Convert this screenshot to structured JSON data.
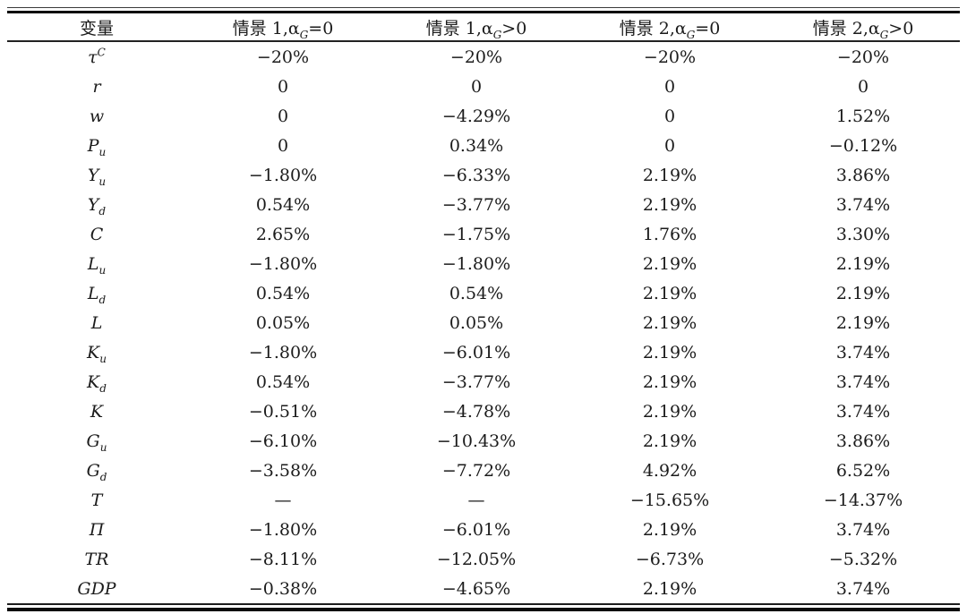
{
  "table": {
    "header": {
      "var_label": "变量",
      "scenarios": [
        {
          "pre": "情景 1,α",
          "sub": "G",
          "post": "=0"
        },
        {
          "pre": "情景 1,α",
          "sub": "G",
          "post": ">0"
        },
        {
          "pre": "情景 2,α",
          "sub": "G",
          "post": "=0"
        },
        {
          "pre": "情景 2,α",
          "sub": "G",
          "post": ">0"
        }
      ]
    },
    "rows": [
      {
        "var": {
          "base": "τ",
          "sup": "C"
        },
        "values": [
          "−20%",
          "−20%",
          "−20%",
          "−20%"
        ]
      },
      {
        "var": {
          "base": "r"
        },
        "values": [
          "0",
          "0",
          "0",
          "0"
        ]
      },
      {
        "var": {
          "base": "w"
        },
        "values": [
          "0",
          "−4.29%",
          "0",
          "1.52%"
        ]
      },
      {
        "var": {
          "base": "P",
          "sub": "u"
        },
        "values": [
          "0",
          "0.34%",
          "0",
          "−0.12%"
        ]
      },
      {
        "var": {
          "base": "Y",
          "sub": "u"
        },
        "values": [
          "−1.80%",
          "−6.33%",
          "2.19%",
          "3.86%"
        ]
      },
      {
        "var": {
          "base": "Y",
          "sub": "d"
        },
        "values": [
          "0.54%",
          "−3.77%",
          "2.19%",
          "3.74%"
        ]
      },
      {
        "var": {
          "base": "C"
        },
        "values": [
          "2.65%",
          "−1.75%",
          "1.76%",
          "3.30%"
        ]
      },
      {
        "var": {
          "base": "L",
          "sub": "u"
        },
        "values": [
          "−1.80%",
          "−1.80%",
          "2.19%",
          "2.19%"
        ]
      },
      {
        "var": {
          "base": "L",
          "sub": "d"
        },
        "values": [
          "0.54%",
          "0.54%",
          "2.19%",
          "2.19%"
        ]
      },
      {
        "var": {
          "base": "L"
        },
        "values": [
          "0.05%",
          "0.05%",
          "2.19%",
          "2.19%"
        ]
      },
      {
        "var": {
          "base": "K",
          "sub": "u"
        },
        "values": [
          "−1.80%",
          "−6.01%",
          "2.19%",
          "3.74%"
        ]
      },
      {
        "var": {
          "base": "K",
          "sub": "d"
        },
        "values": [
          "0.54%",
          "−3.77%",
          "2.19%",
          "3.74%"
        ]
      },
      {
        "var": {
          "base": "K"
        },
        "values": [
          "−0.51%",
          "−4.78%",
          "2.19%",
          "3.74%"
        ]
      },
      {
        "var": {
          "base": "G",
          "sub": "u"
        },
        "values": [
          "−6.10%",
          "−10.43%",
          "2.19%",
          "3.86%"
        ]
      },
      {
        "var": {
          "base": "G",
          "sub": "d"
        },
        "values": [
          "−3.58%",
          "−7.72%",
          "4.92%",
          "6.52%"
        ]
      },
      {
        "var": {
          "base": "T"
        },
        "values": [
          "—",
          "—",
          "−15.65%",
          "−14.37%"
        ]
      },
      {
        "var": {
          "base": "Π"
        },
        "values": [
          "−1.80%",
          "−6.01%",
          "2.19%",
          "3.74%"
        ]
      },
      {
        "var": {
          "base": "TR"
        },
        "values": [
          "−8.11%",
          "−12.05%",
          "−6.73%",
          "−5.32%"
        ]
      },
      {
        "var": {
          "base": "GDP"
        },
        "values": [
          "−0.38%",
          "−4.65%",
          "2.19%",
          "3.74%"
        ]
      }
    ]
  }
}
